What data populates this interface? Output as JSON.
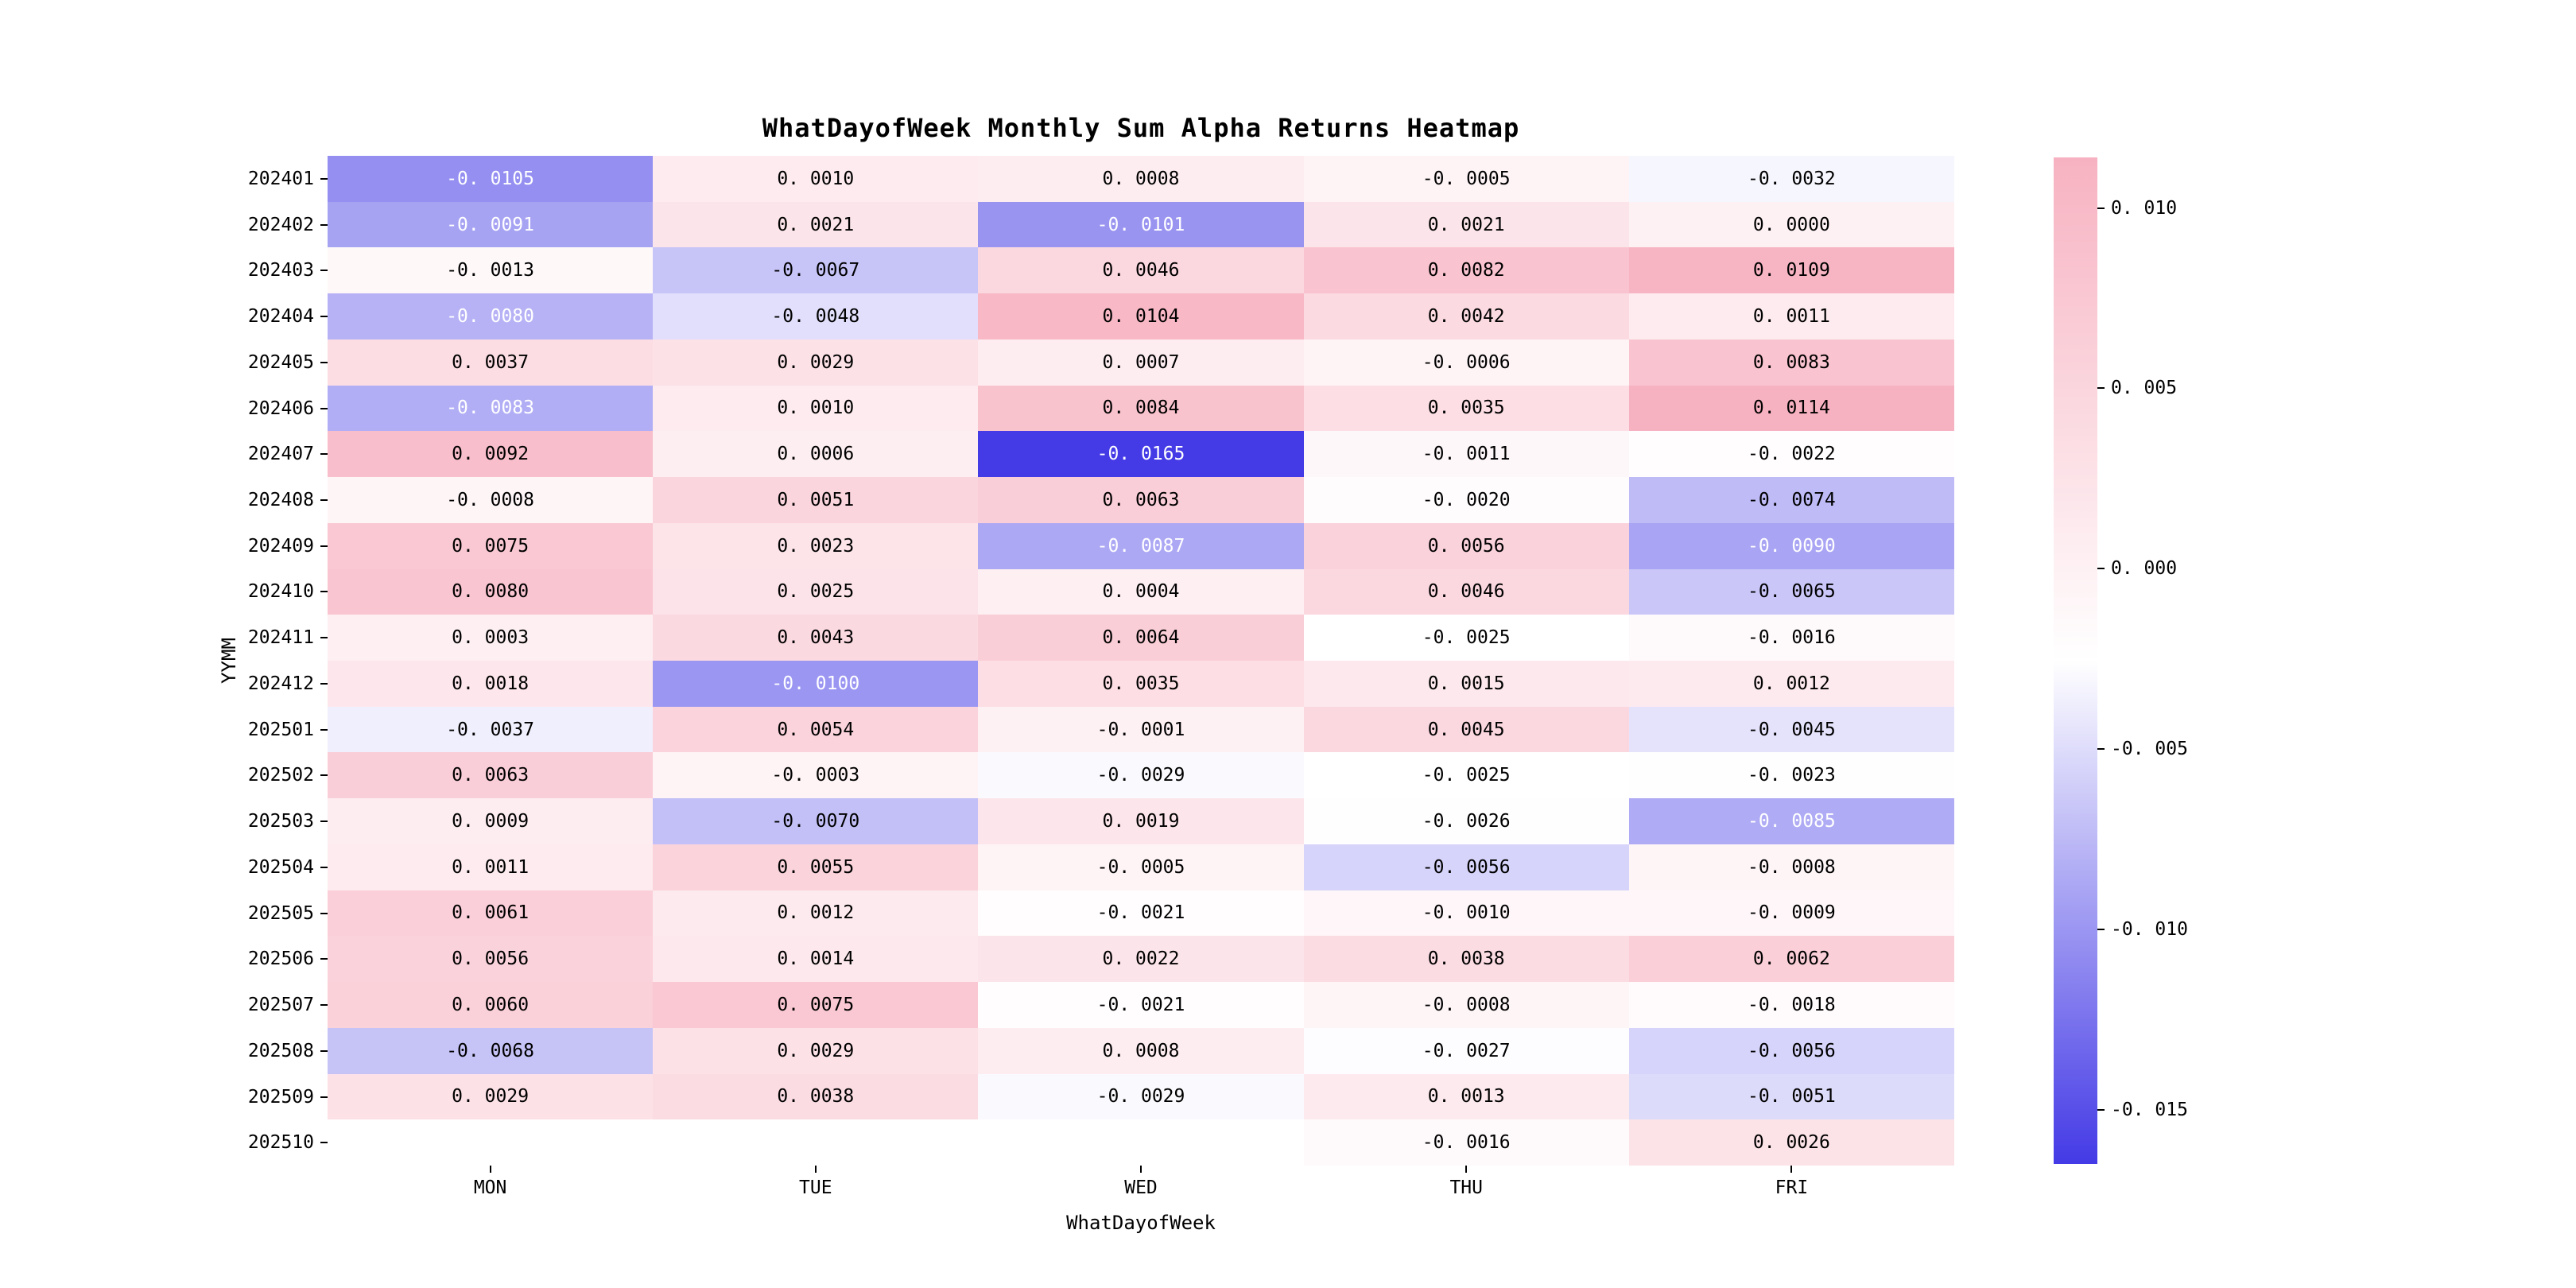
{
  "chart_data": {
    "type": "heatmap",
    "title": "WhatDayofWeek Monthly Sum Alpha Returns Heatmap",
    "xlabel": "WhatDayofWeek",
    "ylabel": "YYMM",
    "columns": [
      "MON",
      "TUE",
      "WED",
      "THU",
      "FRI"
    ],
    "rows": [
      "202401",
      "202402",
      "202403",
      "202404",
      "202405",
      "202406",
      "202407",
      "202408",
      "202409",
      "202410",
      "202411",
      "202412",
      "202501",
      "202502",
      "202503",
      "202504",
      "202505",
      "202506",
      "202507",
      "202508",
      "202509",
      "202510"
    ],
    "values": [
      [
        -0.0105,
        0.001,
        0.0008,
        -0.0005,
        -0.0032
      ],
      [
        -0.0091,
        0.0021,
        -0.0101,
        0.0021,
        0.0
      ],
      [
        -0.0013,
        -0.0067,
        0.0046,
        0.0082,
        0.0109
      ],
      [
        -0.008,
        -0.0048,
        0.0104,
        0.0042,
        0.0011
      ],
      [
        0.0037,
        0.0029,
        0.0007,
        -0.0006,
        0.0083
      ],
      [
        -0.0083,
        0.001,
        0.0084,
        0.0035,
        0.0114
      ],
      [
        0.0092,
        0.0006,
        -0.0165,
        -0.0011,
        -0.0022
      ],
      [
        -0.0008,
        0.0051,
        0.0063,
        -0.002,
        -0.0074
      ],
      [
        0.0075,
        0.0023,
        -0.0087,
        0.0056,
        -0.009
      ],
      [
        0.008,
        0.0025,
        0.0004,
        0.0046,
        -0.0065
      ],
      [
        0.0003,
        0.0043,
        0.0064,
        -0.0025,
        -0.0016
      ],
      [
        0.0018,
        -0.01,
        0.0035,
        0.0015,
        0.0012
      ],
      [
        -0.0037,
        0.0054,
        -0.0001,
        0.0045,
        -0.0045
      ],
      [
        0.0063,
        -0.0003,
        -0.0029,
        -0.0025,
        -0.0023
      ],
      [
        0.0009,
        -0.007,
        0.0019,
        -0.0026,
        -0.0085
      ],
      [
        0.0011,
        0.0055,
        -0.0005,
        -0.0056,
        -0.0008
      ],
      [
        0.0061,
        0.0012,
        -0.0021,
        -0.001,
        -0.0009
      ],
      [
        0.0056,
        0.0014,
        0.0022,
        0.0038,
        0.0062
      ],
      [
        0.006,
        0.0075,
        -0.0021,
        -0.0008,
        -0.0018
      ],
      [
        -0.0068,
        0.0029,
        0.0008,
        -0.0027,
        -0.0056
      ],
      [
        0.0029,
        0.0038,
        -0.0029,
        0.0013,
        -0.0051
      ],
      [
        null,
        null,
        null,
        -0.0016,
        0.0026
      ]
    ],
    "vmin": -0.0165,
    "vmax": 0.0114,
    "colormap": {
      "low": "#443ae6",
      "mid": "#ffffff",
      "high": "#f7b2c1"
    },
    "missing_color": "#ffffff",
    "colorbar_ticks": [
      {
        "value": 0.01,
        "label": "0. 010"
      },
      {
        "value": 0.005,
        "label": "0. 005"
      },
      {
        "value": 0.0,
        "label": "0. 000"
      },
      {
        "value": -0.005,
        "label": "-0. 005"
      },
      {
        "value": -0.01,
        "label": "-0. 010"
      },
      {
        "value": -0.015,
        "label": "-0. 015"
      }
    ],
    "legend_position": "right",
    "grid": false
  }
}
